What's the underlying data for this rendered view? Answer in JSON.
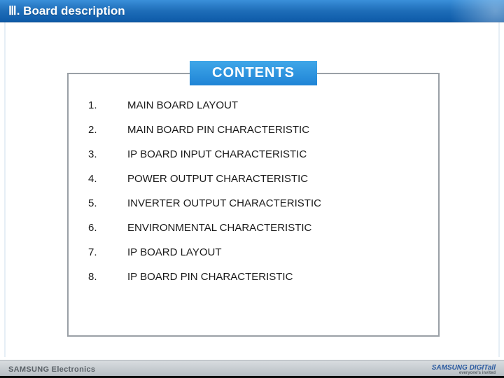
{
  "header": {
    "title": "Ⅲ. Board description"
  },
  "contents": {
    "label": "CONTENTS",
    "items": [
      {
        "num": "1.",
        "text": "MAIN BOARD LAYOUT"
      },
      {
        "num": "2.",
        "text": "MAIN BOARD PIN CHARACTERISTIC"
      },
      {
        "num": "3.",
        "text": "IP BOARD INPUT CHARACTERISTIC"
      },
      {
        "num": "4.",
        "text": "POWER OUTPUT CHARACTERISTIC"
      },
      {
        "num": "5.",
        "text": "INVERTER OUTPUT CHARACTERISTIC"
      },
      {
        "num": "6.",
        "text": "ENVIRONMENTAL CHARACTERISTIC"
      },
      {
        "num": "7.",
        "text": "IP BOARD LAYOUT"
      },
      {
        "num": "8.",
        "text": "IP BOARD PIN CHARACTERISTIC"
      }
    ]
  },
  "footer": {
    "left": "SAMSUNG Electronics",
    "right_main": "SAMSUNG DIGITall",
    "right_sub": "everyone's invited"
  },
  "colors": {
    "header_gradient_top": "#3a8fd9",
    "header_gradient_bottom": "#0d5aa8",
    "contents_label_bg_top": "#3fa7e8",
    "contents_label_bg_bottom": "#1f84d6",
    "box_border": "#9aa0a6",
    "text": "#1a1a1a",
    "footer_bg_top": "#d9dde0",
    "footer_bg_bottom": "#b3bac0",
    "footer_text": "#5b6268",
    "footer_brand": "#2a5aa0"
  }
}
